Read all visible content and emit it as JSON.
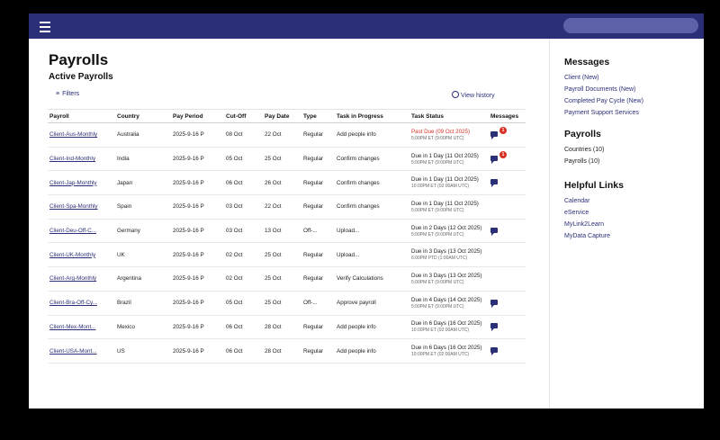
{
  "topbar": {
    "menu_icon": "hamburger-icon"
  },
  "page": {
    "title": "Payrolls",
    "subtitle": "Active Payrolls"
  },
  "toolbar": {
    "filters_label": "Filters",
    "filters_icon": "filter-icon",
    "view_history_label": "View history",
    "history_icon": "clock-icon"
  },
  "table": {
    "headers": [
      "Payroll",
      "Country",
      "Pay Period",
      "Cut-Off",
      "Pay Date",
      "Type",
      "Task in Progress",
      "Task Status",
      "Messages"
    ],
    "rows": [
      {
        "payroll": "Client-Aus-Monthly",
        "country": "Australia",
        "period": "2025-9-16 P",
        "cutoff": "08 Oct",
        "paydate": "22 Oct",
        "type": "Regular",
        "task": "Add people info",
        "status": "Past Due (09 Oct 2025)",
        "status_sub": "5:00PM ET (9:00PM UTC)",
        "status_color": "#d93025",
        "has_msg": true,
        "badge": "1"
      },
      {
        "payroll": "Client-Ind-Monthly",
        "country": "India",
        "period": "2025-9-16 P",
        "cutoff": "05 Oct",
        "paydate": "25 Oct",
        "type": "Regular",
        "task": "Confirm changes",
        "status": "Due in 1 Day (11 Oct 2025)",
        "status_sub": "5:00PM ET (9:00PM UTC)",
        "status_color": "#222",
        "has_msg": true,
        "badge": "1"
      },
      {
        "payroll": "Client-Jap-Monthly",
        "country": "Japan",
        "period": "2025-9-16 P",
        "cutoff": "06 Oct",
        "paydate": "26 Oct",
        "type": "Regular",
        "task": "Confirm changes",
        "status": "Due in 1 Day (11 Oct 2025)",
        "status_sub": "10:00PM ET (02:00AM UTC)",
        "status_color": "#222",
        "has_msg": true,
        "badge": ""
      },
      {
        "payroll": "Client-Spa-Monthly",
        "country": "Spain",
        "period": "2025-9-16 P",
        "cutoff": "03 Oct",
        "paydate": "22 Oct",
        "type": "Regular",
        "task": "Confirm changes",
        "status": "Due in 1 Day (11 Oct 2025)",
        "status_sub": "5:00PM ET (9:00PM UTC)",
        "status_color": "#222",
        "has_msg": false,
        "badge": ""
      },
      {
        "payroll": "Client-Deu-Off-C...",
        "country": "Germany",
        "period": "2025-9-16 P",
        "cutoff": "03 Oct",
        "paydate": "13 Oct",
        "type": "Off-...",
        "task": "Upload...",
        "status": "Due in 2 Days (12 Oct 2025)",
        "status_sub": "5:00PM ET (9:00PM UTC)",
        "status_color": "#222",
        "has_msg": true,
        "badge": ""
      },
      {
        "payroll": "Client-UK-Monthly",
        "country": "UK",
        "period": "2025-9-16 P",
        "cutoff": "02 Oct",
        "paydate": "25 Oct",
        "type": "Regular",
        "task": "Upload...",
        "status": "Due in 3 Days (13 Oct 2025)",
        "status_sub": "6:00PM PTD (1:00AM UTC)",
        "status_color": "#222",
        "has_msg": false,
        "badge": ""
      },
      {
        "payroll": "Client-Arg-Monthly",
        "country": "Argentina",
        "period": "2025-9-16 P",
        "cutoff": "02 Oct",
        "paydate": "25 Oct",
        "type": "Regular",
        "task": "Verify Calculations",
        "status": "Due in 3 Days (13 Oct 2025)",
        "status_sub": "5:00PM ET (9:00PM UTC)",
        "status_color": "#222",
        "has_msg": false,
        "badge": ""
      },
      {
        "payroll": "Client-Bra-Off-Cy...",
        "country": "Brazil",
        "period": "2025-9-16 P",
        "cutoff": "05 Oct",
        "paydate": "25 Oct",
        "type": "Off-...",
        "task": "Approve payroll",
        "status": "Due in 4 Days (14 Oct 2025)",
        "status_sub": "5:00PM ET (9:00PM UTC)",
        "status_color": "#222",
        "has_msg": true,
        "badge": ""
      },
      {
        "payroll": "Client-Mex-Mont...",
        "country": "Mexico",
        "period": "2025-9-16 P",
        "cutoff": "06 Oct",
        "paydate": "28 Oct",
        "type": "Regular",
        "task": "Add people info",
        "status": "Due in 6 Days (16 Oct 2025)",
        "status_sub": "10:00PM ET (02:00AM UTC)",
        "status_color": "#222",
        "has_msg": true,
        "badge": ""
      },
      {
        "payroll": "Client-USA-Mont...",
        "country": "US",
        "period": "2025-9-16 P",
        "cutoff": "06 Oct",
        "paydate": "28 Oct",
        "type": "Regular",
        "task": "Add people info",
        "status": "Due in 6 Days (16 Oct 2025)",
        "status_sub": "10:00PM ET (02:00AM UTC)",
        "status_color": "#222",
        "has_msg": true,
        "badge": ""
      }
    ]
  },
  "sidebar": {
    "messages_title": "Messages",
    "messages": [
      "Client (New)",
      "Payroll Documents (New)",
      "Completed Pay Cycle (New)",
      "Payment Support Services"
    ],
    "payrolls_title": "Payrolls",
    "payrolls": [
      "Countries (10)",
      "Payrolls (10)"
    ],
    "links_title": "Helpful Links",
    "links": [
      "Calendar",
      "eService",
      "MyLink2Learn",
      "MyData Capture"
    ]
  }
}
